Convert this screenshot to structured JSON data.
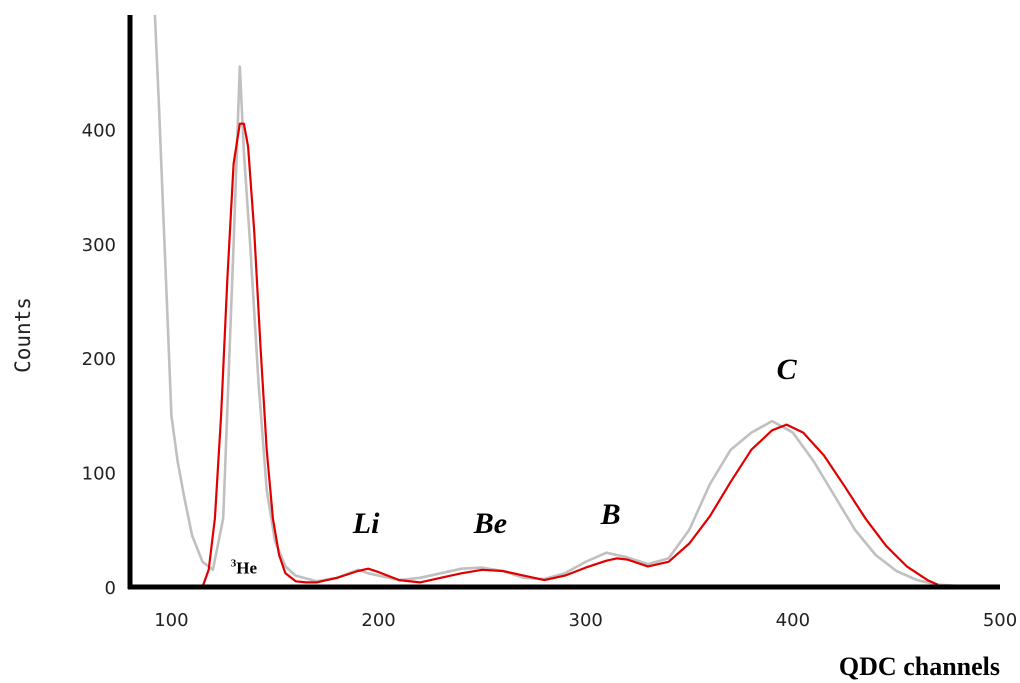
{
  "chart_data": {
    "type": "line",
    "xlabel": "QDC channels",
    "ylabel": "Counts",
    "xlim": [
      80,
      500
    ],
    "ylim": [
      0,
      500
    ],
    "x_ticks": [
      100,
      200,
      300,
      400,
      500
    ],
    "y_ticks": [
      0,
      100,
      200,
      300,
      400
    ],
    "grid": false,
    "series": [
      {
        "color": "#c0c0c0",
        "style": "measured",
        "x": [
          92,
          94,
          96,
          98,
          100,
          103,
          106,
          110,
          115,
          120,
          125,
          130,
          133,
          135,
          138,
          142,
          146,
          150,
          155,
          160,
          170,
          180,
          190,
          195,
          200,
          210,
          220,
          230,
          240,
          250,
          260,
          270,
          280,
          290,
          300,
          310,
          315,
          320,
          330,
          340,
          350,
          360,
          370,
          380,
          390,
          395,
          400,
          410,
          420,
          430,
          440,
          450,
          460,
          470,
          480,
          490,
          500
        ],
        "y": [
          500,
          420,
          330,
          240,
          150,
          110,
          80,
          45,
          22,
          15,
          60,
          300,
          455,
          380,
          300,
          180,
          85,
          40,
          18,
          10,
          5,
          8,
          15,
          12,
          10,
          6,
          8,
          12,
          16,
          17,
          14,
          8,
          7,
          12,
          22,
          30,
          28,
          26,
          20,
          25,
          50,
          90,
          120,
          135,
          145,
          140,
          135,
          110,
          80,
          50,
          28,
          14,
          6,
          2,
          1,
          0,
          0
        ]
      },
      {
        "color": "#e00000",
        "style": "fit",
        "x": [
          115,
          118,
          121,
          124,
          127,
          130,
          133,
          135,
          137,
          140,
          143,
          146,
          149,
          152,
          155,
          160,
          165,
          170,
          180,
          190,
          195,
          200,
          210,
          220,
          230,
          240,
          250,
          260,
          270,
          280,
          290,
          300,
          310,
          315,
          320,
          330,
          340,
          350,
          360,
          370,
          380,
          390,
          397,
          405,
          415,
          425,
          435,
          445,
          455,
          465,
          470
        ],
        "y": [
          0,
          15,
          60,
          150,
          270,
          370,
          405,
          405,
          385,
          310,
          210,
          120,
          60,
          28,
          12,
          5,
          4,
          4,
          8,
          14,
          16,
          13,
          6,
          4,
          8,
          12,
          15,
          14,
          10,
          6,
          10,
          17,
          23,
          25,
          24,
          18,
          22,
          38,
          62,
          92,
          120,
          137,
          142,
          135,
          115,
          88,
          60,
          36,
          18,
          6,
          2
        ]
      }
    ],
    "annotations": [
      {
        "text": "He",
        "sup": "3",
        "x": 135,
        "y": 5
      },
      {
        "text": "Li",
        "x": 194,
        "y": 40
      },
      {
        "text": "Be",
        "x": 254,
        "y": 40
      },
      {
        "text": "B",
        "x": 312,
        "y": 48
      },
      {
        "text": "C",
        "x": 397,
        "y": 175
      }
    ]
  }
}
